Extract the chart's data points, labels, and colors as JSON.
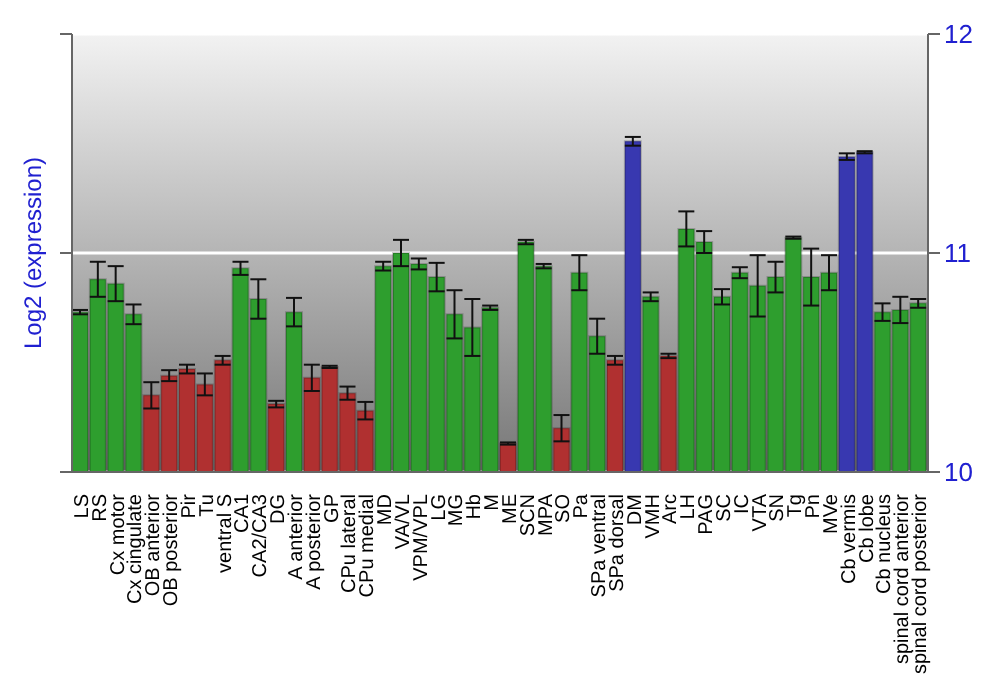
{
  "chart_data": {
    "type": "bar",
    "ylabel": "Log2 (expression)",
    "categories": [
      "LS",
      "RS",
      "Cx motor",
      "Cx cingulate",
      "OB anterior",
      "OB posterior",
      "Pir",
      "Tu",
      "ventral S",
      "CA1",
      "CA2/CA3",
      "DG",
      "A anterior",
      "A posterior",
      "GP",
      "CPu lateral",
      "CPu medial",
      "MD",
      "VA/VL",
      "VPM/VPL",
      "LG",
      "MG",
      "Hb",
      "M",
      "ME",
      "SCN",
      "MPA",
      "SO",
      "Pa",
      "SPa ventral",
      "SPa dorsal",
      "DM",
      "VMH",
      "Arc",
      "LH",
      "PAG",
      "SC",
      "IC",
      "VTA",
      "SN",
      "Tg",
      "Pn",
      "MVe",
      "Cb vermis",
      "Cb lobe",
      "Cb nucleus",
      "spinal cord anterior",
      "spinal cord posterior"
    ],
    "values": [
      10.73,
      10.88,
      10.86,
      10.72,
      10.35,
      10.44,
      10.47,
      10.4,
      10.51,
      10.93,
      10.79,
      10.31,
      10.73,
      10.43,
      10.48,
      10.36,
      10.28,
      10.94,
      11.0,
      10.95,
      10.89,
      10.72,
      10.66,
      10.75,
      10.13,
      11.05,
      10.94,
      10.2,
      10.91,
      10.62,
      10.51,
      11.51,
      10.8,
      10.53,
      11.11,
      11.05,
      10.8,
      10.91,
      10.85,
      10.89,
      11.07,
      10.89,
      10.91,
      11.44,
      11.46,
      10.73,
      10.74,
      10.77
    ],
    "errors": [
      0.01,
      0.08,
      0.08,
      0.045,
      0.06,
      0.025,
      0.02,
      0.05,
      0.02,
      0.03,
      0.09,
      0.015,
      0.065,
      0.06,
      0.005,
      0.03,
      0.04,
      0.02,
      0.06,
      0.025,
      0.065,
      0.11,
      0.13,
      0.01,
      0.005,
      0.01,
      0.01,
      0.06,
      0.08,
      0.08,
      0.02,
      0.02,
      0.02,
      0.01,
      0.08,
      0.05,
      0.035,
      0.025,
      0.14,
      0.07,
      0.005,
      0.13,
      0.08,
      0.015,
      0.005,
      0.04,
      0.06,
      0.02
    ],
    "colors": [
      "#2e9e2e",
      "#2e9e2e",
      "#2e9e2e",
      "#2e9e2e",
      "#b03030",
      "#b03030",
      "#b03030",
      "#b03030",
      "#b03030",
      "#2e9e2e",
      "#2e9e2e",
      "#b03030",
      "#2e9e2e",
      "#b03030",
      "#b03030",
      "#b03030",
      "#b03030",
      "#2e9e2e",
      "#2e9e2e",
      "#2e9e2e",
      "#2e9e2e",
      "#2e9e2e",
      "#2e9e2e",
      "#2e9e2e",
      "#b03030",
      "#2e9e2e",
      "#2e9e2e",
      "#b03030",
      "#2e9e2e",
      "#2e9e2e",
      "#b03030",
      "#3838b0",
      "#2e9e2e",
      "#b03030",
      "#2e9e2e",
      "#2e9e2e",
      "#2e9e2e",
      "#2e9e2e",
      "#2e9e2e",
      "#2e9e2e",
      "#2e9e2e",
      "#2e9e2e",
      "#2e9e2e",
      "#3838b0",
      "#3838b0",
      "#2e9e2e",
      "#2e9e2e",
      "#2e9e2e"
    ],
    "ylim": [
      10,
      12
    ],
    "yticks": [
      10,
      11,
      12
    ],
    "grid": "y"
  }
}
